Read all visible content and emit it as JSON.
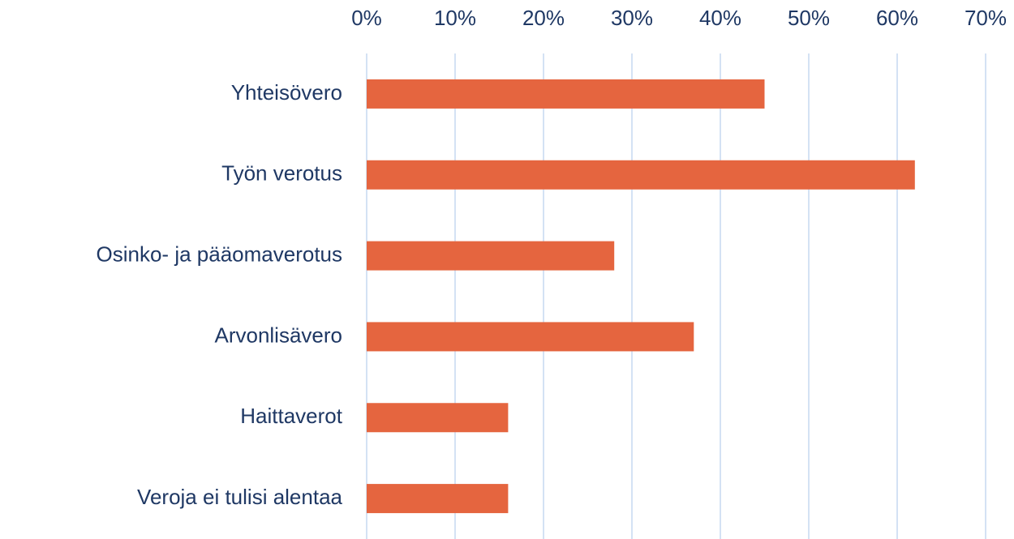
{
  "chart_data": {
    "type": "bar",
    "orientation": "horizontal",
    "categories": [
      "Yhteisövero",
      "Työn verotus",
      "Osinko- ja pääomaverotus",
      "Arvonlisävero",
      "Haittaverot",
      "Veroja ei tulisi alentaa"
    ],
    "values": [
      45,
      62,
      28,
      37,
      16,
      16
    ],
    "color": "#e5653f",
    "xlim": [
      0,
      70
    ],
    "xticks": [
      {
        "value": 0,
        "label": "0%"
      },
      {
        "value": 10,
        "label": "10%"
      },
      {
        "value": 20,
        "label": "20%"
      },
      {
        "value": 30,
        "label": "30%"
      },
      {
        "value": 40,
        "label": "40%"
      },
      {
        "value": 50,
        "label": "50%"
      },
      {
        "value": 60,
        "label": "60%"
      },
      {
        "value": 70,
        "label": "70%"
      }
    ],
    "grid": true
  }
}
